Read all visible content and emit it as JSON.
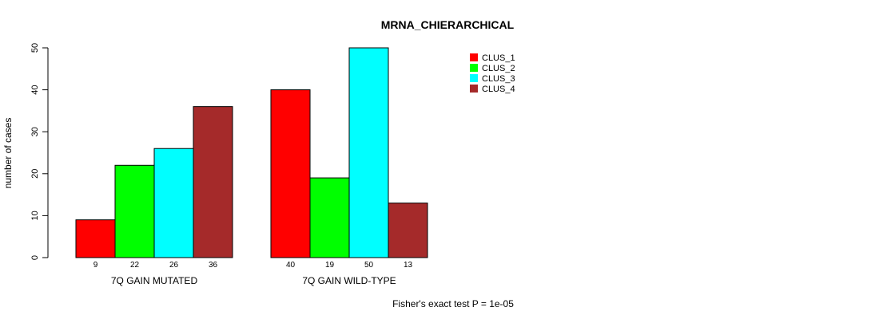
{
  "chart_data": {
    "type": "bar",
    "title": "MRNA_CHIERARCHICAL",
    "ylabel": "number of cases",
    "ylim": [
      0,
      50
    ],
    "yticks": [
      0,
      10,
      20,
      30,
      40,
      50
    ],
    "groups": [
      "7Q GAIN MUTATED",
      "7Q GAIN WILD-TYPE"
    ],
    "series": [
      {
        "name": "CLUS_1",
        "color": "#ff0000",
        "values": [
          9,
          40
        ]
      },
      {
        "name": "CLUS_2",
        "color": "#00ff00",
        "values": [
          22,
          19
        ]
      },
      {
        "name": "CLUS_3",
        "color": "#00ffff",
        "values": [
          26,
          50
        ]
      },
      {
        "name": "CLUS_4",
        "color": "#a52a2a",
        "values": [
          36,
          13
        ]
      }
    ],
    "legend_position": "top-right",
    "footnote": "Fisher's exact test P = 1e-05"
  }
}
